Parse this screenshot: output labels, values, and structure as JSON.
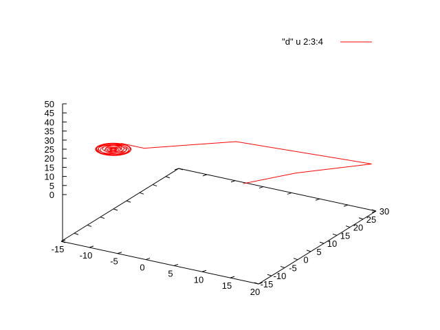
{
  "chart_data": {
    "type": "line",
    "dimensions": 3,
    "title": "",
    "legend": {
      "position": "top-right"
    },
    "series": [
      {
        "name": "\"d\" u 2:3:4",
        "color": "#ff0000",
        "spiral_center": [
          -9,
          -8,
          28
        ],
        "points": [
          [
            -8,
            -7,
            30
          ],
          [
            -4,
            -7,
            30
          ],
          [
            10,
            -2,
            35
          ],
          [
            22,
            24,
            19
          ],
          [
            10,
            21,
            13
          ],
          [
            2,
            18,
            8
          ]
        ]
      }
    ],
    "axes": {
      "x": {
        "range": [
          -15,
          20
        ],
        "ticks": [
          "-15",
          "-10",
          "-5",
          "0",
          "5",
          "10",
          "15",
          "20"
        ]
      },
      "y": {
        "range": [
          -15,
          30
        ],
        "ticks": [
          "-15",
          "-10",
          "-5",
          "0",
          "5",
          "10",
          "15",
          "20",
          "25",
          "30"
        ]
      },
      "z": {
        "range": [
          0,
          50
        ],
        "ticks": [
          "0",
          "5",
          "10",
          "15",
          "20",
          "25",
          "30",
          "35",
          "40",
          "45",
          "50"
        ]
      }
    },
    "grid": false
  }
}
